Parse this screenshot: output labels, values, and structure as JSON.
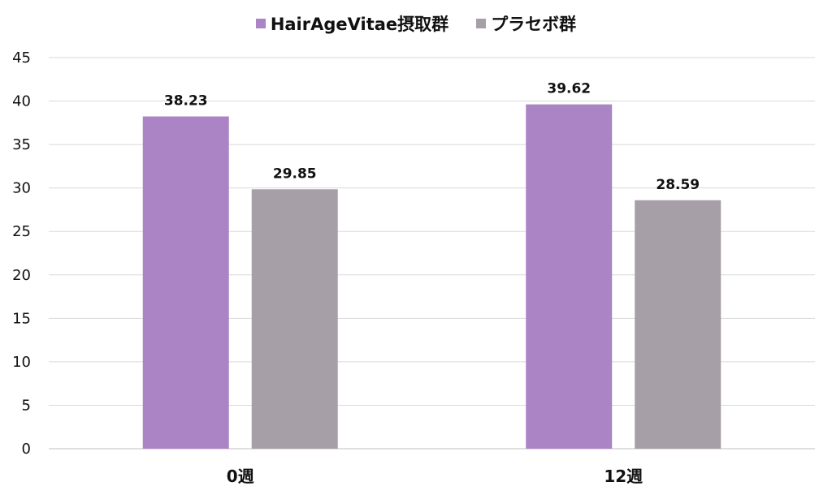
{
  "chart_data": {
    "type": "bar",
    "categories": [
      "0週",
      "12週"
    ],
    "series": [
      {
        "name": "HairAgeVitae摂取群",
        "values": [
          38.23,
          39.62
        ],
        "color": "#ab84c5"
      },
      {
        "name": "プラセボ群",
        "values": [
          29.85,
          28.59
        ],
        "color": "#a79fa8"
      }
    ],
    "data_labels": [
      [
        "38.23",
        "39.62"
      ],
      [
        "29.85",
        "28.59"
      ]
    ],
    "ylim": [
      0,
      45
    ],
    "yticks": [
      0,
      5,
      10,
      15,
      20,
      25,
      30,
      35,
      40,
      45
    ],
    "grid": true,
    "legend_position": "top-center",
    "title": "",
    "xlabel": "",
    "ylabel": ""
  }
}
